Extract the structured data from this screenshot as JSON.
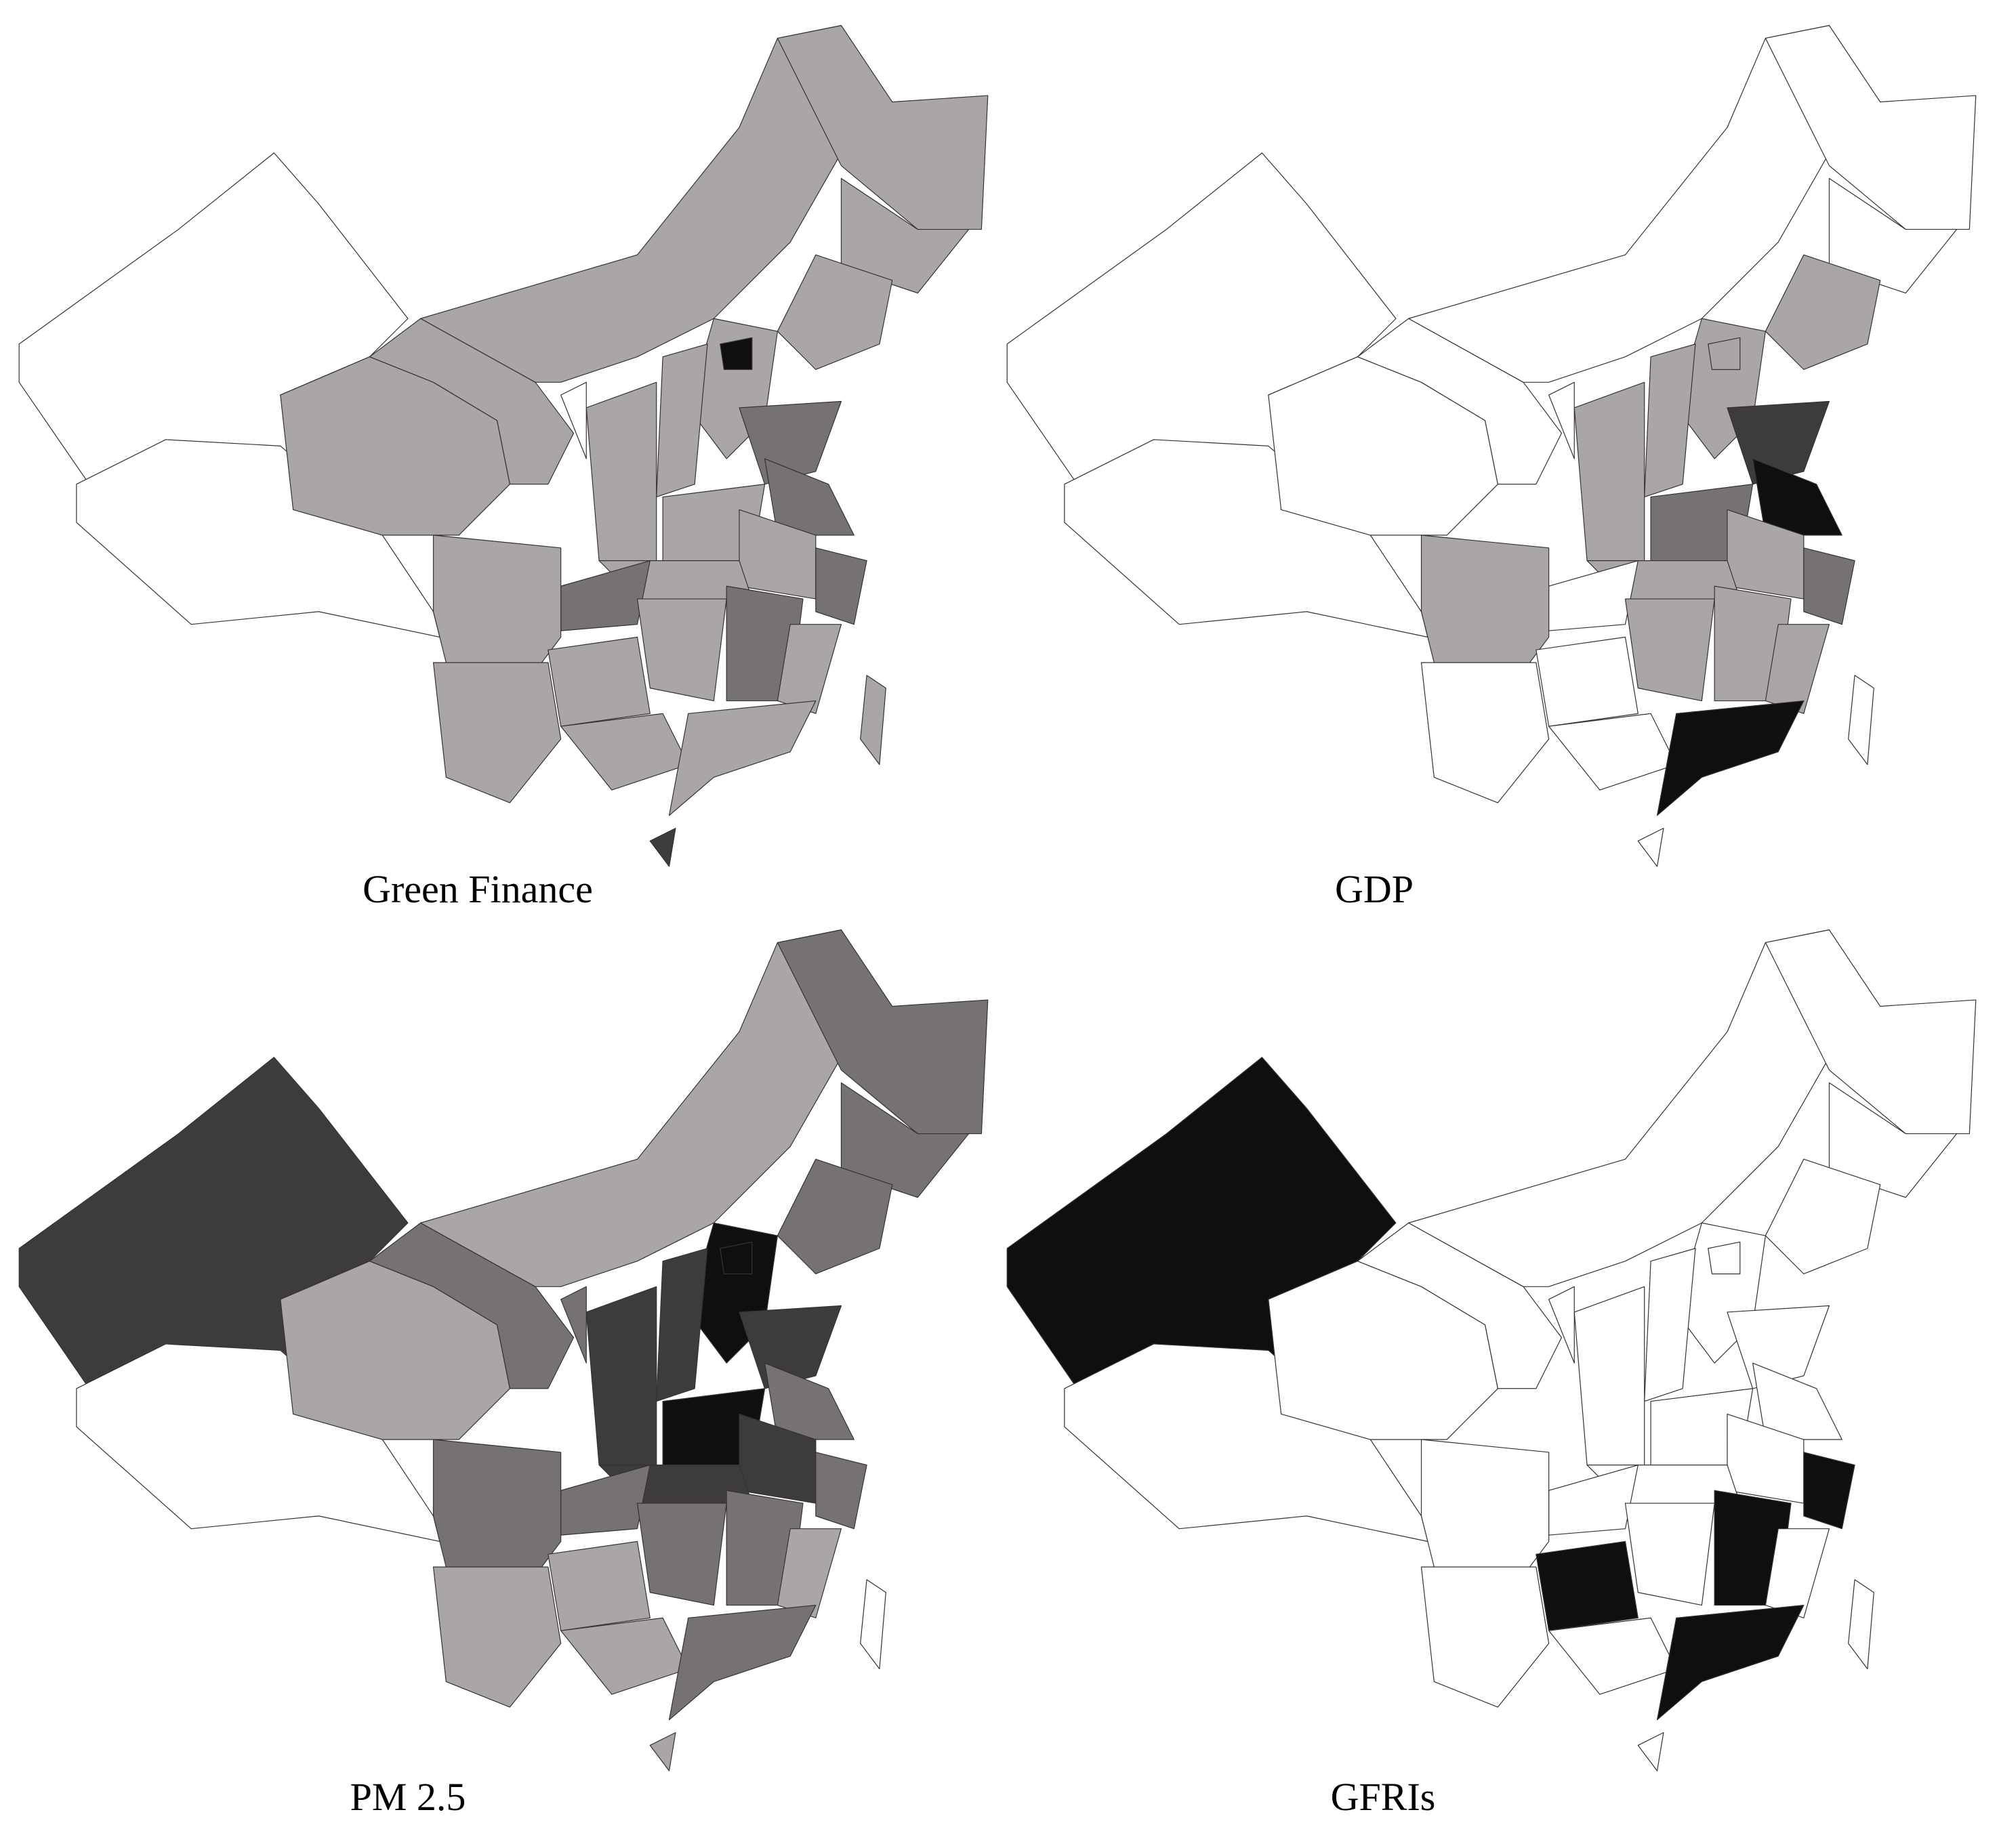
{
  "maps": [
    {
      "title": "Green Finance"
    },
    {
      "title": "GDP"
    },
    {
      "title": "PM 2.5"
    },
    {
      "title": "GFRIs"
    }
  ]
}
